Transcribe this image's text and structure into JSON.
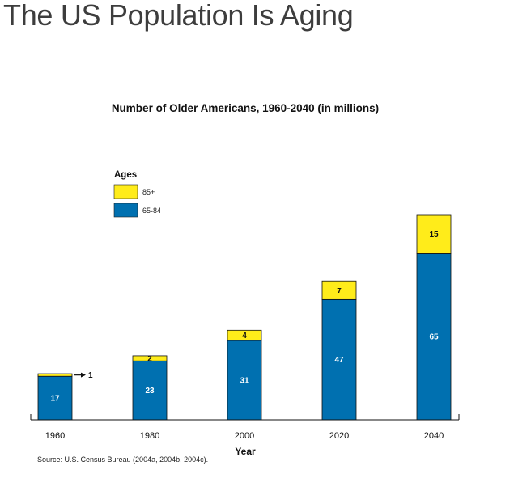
{
  "page": {
    "title": "The US Population Is Aging"
  },
  "chart_data": {
    "type": "bar",
    "stacked": true,
    "title": "Number of Older Americans, 1960-2040 (in millions)",
    "xlabel": "Year",
    "ylabel": "",
    "ylim": [
      0,
      80
    ],
    "grid": false,
    "categories": [
      "1960",
      "1980",
      "2000",
      "2020",
      "2040"
    ],
    "series": [
      {
        "name": "65-84",
        "values": [
          17,
          23,
          31,
          47,
          65
        ],
        "color": "#0070b0",
        "label_color": "#ffffff"
      },
      {
        "name": "85+",
        "values": [
          1,
          2,
          4,
          7,
          15
        ],
        "color": "#ffec1a",
        "label_color": "#111111"
      }
    ],
    "legend": {
      "title": "Ages",
      "position": "top-left",
      "entries": [
        "85+",
        "65-84"
      ]
    },
    "annotations": [
      {
        "category": "1960",
        "series": "85+",
        "text": "1",
        "style": "arrow-right"
      }
    ],
    "source": "Source: U.S. Census Bureau (2004a, 2004b, 2004c)."
  }
}
